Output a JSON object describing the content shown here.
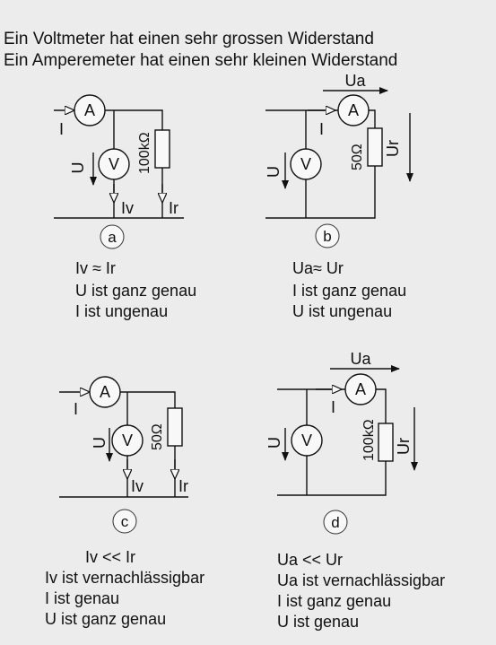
{
  "header": {
    "line1": "Ein Voltmeter hat einen sehr grossen Widerstand",
    "line2": "Ein Amperemeter hat einen sehr kleinen Widerstand"
  },
  "symbols": {
    "ammeter": "A",
    "voltmeter": "V",
    "current": "I",
    "voltage": "U",
    "current_voltmeter": "Iv",
    "current_resistor": "Ir",
    "voltage_ammeter": "Ua",
    "voltage_resistor": "Ur"
  },
  "circuits": [
    {
      "label": "a",
      "resistor": "100kΩ",
      "notes": [
        "Iv ≈ Ir",
        "U ist ganz genau",
        "I ist ungenau"
      ]
    },
    {
      "label": "b",
      "resistor": "50Ω",
      "notes": [
        "Ua≈ Ur",
        "I ist ganz genau",
        "U ist ungenau"
      ]
    },
    {
      "label": "c",
      "resistor": "50Ω",
      "notes": [
        "Iv << Ir",
        "Iv ist vernachlässigbar",
        "I ist genau",
        "U ist ganz genau"
      ]
    },
    {
      "label": "d",
      "resistor": "100kΩ",
      "notes": [
        "Ua << Ur",
        "Ua ist vernachlässigbar",
        "I ist ganz genau",
        "U ist  genau"
      ]
    }
  ]
}
